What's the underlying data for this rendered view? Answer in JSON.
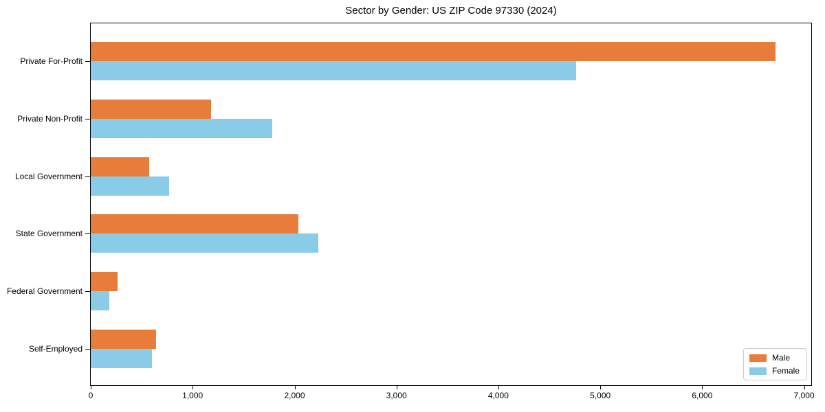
{
  "figure": {
    "title": "Sector by Gender: US ZIP Code 97330 (2024)"
  },
  "colors": {
    "male": "#E87C3A",
    "female": "#8ACCE8",
    "axis": "#000000",
    "text": "#000000",
    "legend_border": "#CCCCCC",
    "background": "#FFFFFF"
  },
  "chart_data": {
    "type": "bar",
    "orientation": "horizontal",
    "title": "Sector by Gender: US ZIP Code 97330 (2024)",
    "categories": [
      "Private For-Profit",
      "Private Non-Profit",
      "Local Government",
      "State Government",
      "Federal Government",
      "Self-Employed"
    ],
    "series": [
      {
        "name": "Male",
        "color": "#E87C3A",
        "values": [
          6720,
          1180,
          570,
          2040,
          260,
          640
        ]
      },
      {
        "name": "Female",
        "color": "#8ACCE8",
        "values": [
          4760,
          1780,
          770,
          2230,
          185,
          600
        ]
      }
    ],
    "xlabel": "",
    "ylabel": "",
    "xlim": [
      0,
      7070
    ],
    "xticks": [
      0,
      1000,
      2000,
      3000,
      4000,
      5000,
      6000,
      7000
    ],
    "xtick_labels": [
      "0",
      "1,000",
      "2,000",
      "3,000",
      "4,000",
      "5,000",
      "6,000",
      "7,000"
    ],
    "legend": {
      "position": "lower right",
      "entries": [
        "Male",
        "Female"
      ]
    },
    "grid": false
  }
}
